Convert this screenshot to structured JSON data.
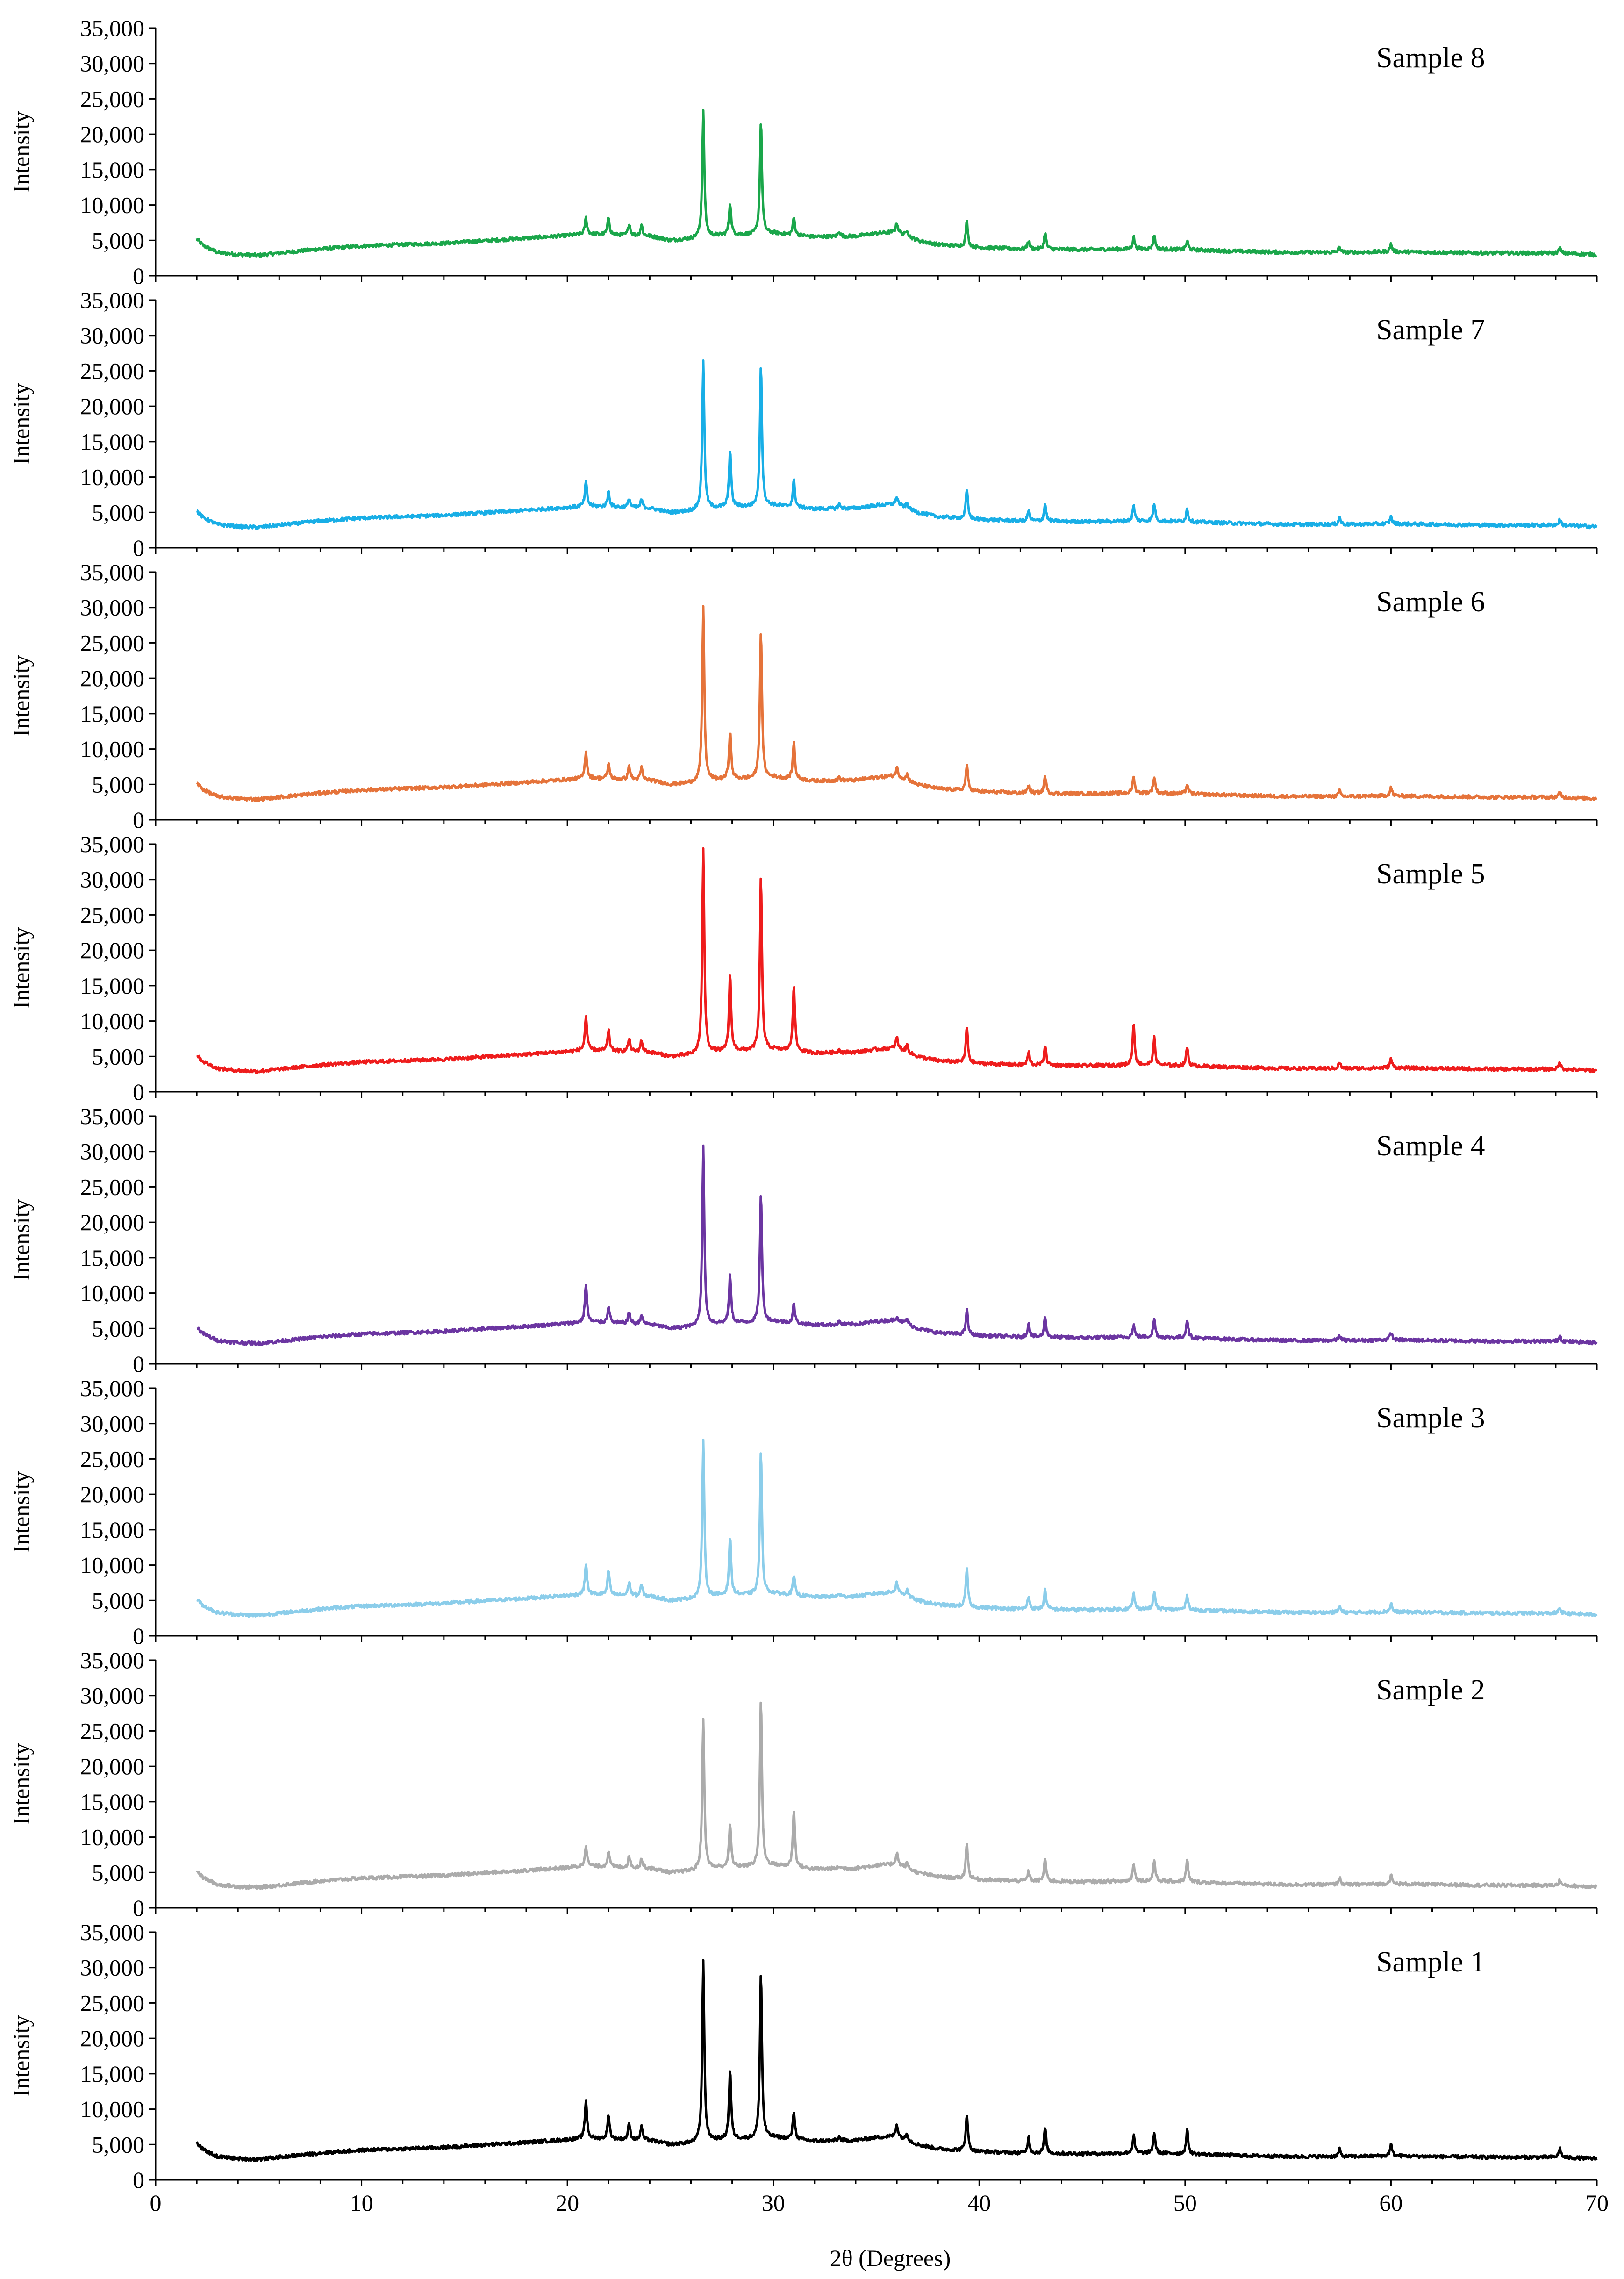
{
  "chart_data": {
    "type": "line",
    "xlabel": "2θ (Degrees)",
    "ylabel": "Intensity",
    "xlim": [
      0,
      70
    ],
    "ylim": [
      0,
      35000
    ],
    "x_ticks": [
      0,
      10,
      20,
      30,
      40,
      50,
      60,
      70
    ],
    "x_tick_labels": [
      "0",
      "10",
      "20",
      "30",
      "40",
      "50",
      "60",
      "70"
    ],
    "y_ticks": [
      0,
      5000,
      10000,
      15000,
      20000,
      25000,
      30000,
      35000
    ],
    "y_tick_labels": [
      "0",
      "5,000",
      "10,000",
      "15,000",
      "20,000",
      "25,000",
      "30,000",
      "35,000"
    ],
    "background": [
      [
        2,
        5200
      ],
      [
        2.3,
        4300
      ],
      [
        3,
        3300
      ],
      [
        4,
        3000
      ],
      [
        5,
        2900
      ],
      [
        6,
        3200
      ],
      [
        8,
        3800
      ],
      [
        10,
        4200
      ],
      [
        14,
        4600
      ],
      [
        18,
        5300
      ],
      [
        20,
        5700
      ],
      [
        21,
        5900
      ],
      [
        22,
        5800
      ],
      [
        24,
        5600
      ],
      [
        25,
        5000
      ],
      [
        26,
        5200
      ],
      [
        27,
        5600
      ],
      [
        28,
        5800
      ],
      [
        29,
        5800
      ],
      [
        30,
        6000
      ],
      [
        32,
        5500
      ],
      [
        34,
        5600
      ],
      [
        35,
        6000
      ],
      [
        36,
        6200
      ],
      [
        37,
        5000
      ],
      [
        38,
        4400
      ],
      [
        40,
        4000
      ],
      [
        42,
        3800
      ],
      [
        45,
        3700
      ],
      [
        48,
        3800
      ],
      [
        50,
        3700
      ],
      [
        52,
        3500
      ],
      [
        55,
        3300
      ],
      [
        58,
        3300
      ],
      [
        60,
        3400
      ],
      [
        62,
        3300
      ],
      [
        65,
        3200
      ],
      [
        68,
        3200
      ],
      [
        70,
        3000
      ]
    ],
    "series": [
      {
        "name": "Sample 8",
        "label": "Sample 8",
        "color": "#1aa64a",
        "peaks": [
          [
            20.9,
            8200
          ],
          [
            22.0,
            8200
          ],
          [
            23.0,
            7400
          ],
          [
            23.6,
            7200
          ],
          [
            26.6,
            23300
          ],
          [
            27.9,
            10300
          ],
          [
            29.4,
            21900
          ],
          [
            31.0,
            8200
          ],
          [
            33.2,
            6300
          ],
          [
            36.0,
            7500
          ],
          [
            36.5,
            6500
          ],
          [
            39.4,
            7700
          ],
          [
            42.4,
            5000
          ],
          [
            43.2,
            6100
          ],
          [
            47.5,
            5500
          ],
          [
            48.5,
            5800
          ],
          [
            50.1,
            4900
          ],
          [
            57.5,
            4100
          ],
          [
            60.0,
            4500
          ],
          [
            68.2,
            3900
          ]
        ]
      },
      {
        "name": "Sample 7",
        "label": "Sample 7",
        "color": "#18aee6",
        "peaks": [
          [
            20.9,
            9300
          ],
          [
            22.0,
            8000
          ],
          [
            23.0,
            7000
          ],
          [
            23.6,
            6800
          ],
          [
            26.6,
            26600
          ],
          [
            27.9,
            13900
          ],
          [
            29.4,
            26000
          ],
          [
            31.0,
            9500
          ],
          [
            33.2,
            6200
          ],
          [
            36.0,
            7200
          ],
          [
            36.5,
            6300
          ],
          [
            39.4,
            8200
          ],
          [
            42.4,
            5300
          ],
          [
            43.2,
            6200
          ],
          [
            47.5,
            6000
          ],
          [
            48.5,
            6300
          ],
          [
            50.1,
            5500
          ],
          [
            57.5,
            4300
          ],
          [
            60.0,
            4400
          ],
          [
            68.2,
            4000
          ]
        ]
      },
      {
        "name": "Sample 6",
        "label": "Sample 6",
        "color": "#e5733a",
        "peaks": [
          [
            20.9,
            9700
          ],
          [
            22.0,
            7900
          ],
          [
            23.0,
            7600
          ],
          [
            23.6,
            7400
          ],
          [
            26.6,
            30200
          ],
          [
            27.9,
            12500
          ],
          [
            29.4,
            26900
          ],
          [
            31.0,
            11000
          ],
          [
            33.2,
            6000
          ],
          [
            36.0,
            7400
          ],
          [
            36.5,
            6400
          ],
          [
            39.4,
            7800
          ],
          [
            42.4,
            5000
          ],
          [
            43.2,
            6200
          ],
          [
            47.5,
            6100
          ],
          [
            48.5,
            6100
          ],
          [
            50.1,
            5000
          ],
          [
            57.5,
            4100
          ],
          [
            60.0,
            4600
          ],
          [
            68.2,
            3900
          ]
        ]
      },
      {
        "name": "Sample 5",
        "label": "Sample 5",
        "color": "#ee1c1c",
        "peaks": [
          [
            20.9,
            10700
          ],
          [
            22.0,
            8600
          ],
          [
            23.0,
            7500
          ],
          [
            23.6,
            7300
          ],
          [
            26.6,
            34200
          ],
          [
            27.9,
            16500
          ],
          [
            29.4,
            30500
          ],
          [
            31.0,
            15200
          ],
          [
            33.2,
            6000
          ],
          [
            36.0,
            7700
          ],
          [
            36.5,
            6700
          ],
          [
            39.4,
            9100
          ],
          [
            42.4,
            5600
          ],
          [
            43.2,
            6600
          ],
          [
            47.5,
            9700
          ],
          [
            48.5,
            7600
          ],
          [
            50.1,
            6300
          ],
          [
            57.5,
            4200
          ],
          [
            60.0,
            4700
          ],
          [
            68.2,
            4200
          ]
        ]
      },
      {
        "name": "Sample 4",
        "label": "Sample 4",
        "color": "#6b35a1",
        "peaks": [
          [
            20.9,
            11300
          ],
          [
            22.0,
            8200
          ],
          [
            23.0,
            7300
          ],
          [
            23.6,
            7000
          ],
          [
            26.6,
            30600
          ],
          [
            27.9,
            12500
          ],
          [
            29.4,
            24300
          ],
          [
            31.0,
            8400
          ],
          [
            33.2,
            6000
          ],
          [
            36.0,
            6700
          ],
          [
            36.5,
            6400
          ],
          [
            39.4,
            7600
          ],
          [
            42.4,
            5800
          ],
          [
            43.2,
            6700
          ],
          [
            47.5,
            5500
          ],
          [
            48.5,
            6400
          ],
          [
            50.1,
            6300
          ],
          [
            57.5,
            4100
          ],
          [
            60.0,
            4500
          ],
          [
            68.2,
            4000
          ]
        ]
      },
      {
        "name": "Sample 3",
        "label": "Sample 3",
        "color": "#8bcdea",
        "peaks": [
          [
            20.9,
            10200
          ],
          [
            22.0,
            9200
          ],
          [
            23.0,
            7700
          ],
          [
            23.6,
            7200
          ],
          [
            26.6,
            27700
          ],
          [
            27.9,
            14000
          ],
          [
            29.4,
            26100
          ],
          [
            31.0,
            8500
          ],
          [
            33.2,
            6000
          ],
          [
            36.0,
            7600
          ],
          [
            36.5,
            6600
          ],
          [
            39.4,
            9500
          ],
          [
            42.4,
            5600
          ],
          [
            43.2,
            6500
          ],
          [
            47.5,
            6000
          ],
          [
            48.5,
            6300
          ],
          [
            50.1,
            5800
          ],
          [
            57.5,
            4200
          ],
          [
            60.0,
            4600
          ],
          [
            68.2,
            4000
          ]
        ]
      },
      {
        "name": "Sample 2",
        "label": "Sample 2",
        "color": "#ababab",
        "peaks": [
          [
            20.9,
            8900
          ],
          [
            22.0,
            8100
          ],
          [
            23.0,
            7300
          ],
          [
            23.6,
            7000
          ],
          [
            26.6,
            26900
          ],
          [
            27.9,
            11800
          ],
          [
            29.4,
            29700
          ],
          [
            31.0,
            13900
          ],
          [
            33.2,
            5900
          ],
          [
            36.0,
            7800
          ],
          [
            36.5,
            6300
          ],
          [
            39.4,
            9200
          ],
          [
            42.4,
            5200
          ],
          [
            43.2,
            7000
          ],
          [
            47.5,
            6400
          ],
          [
            48.5,
            6800
          ],
          [
            50.1,
            6700
          ],
          [
            57.5,
            4300
          ],
          [
            60.0,
            4600
          ],
          [
            68.2,
            3900
          ]
        ]
      },
      {
        "name": "Sample 1",
        "label": "Sample 1",
        "color": "#000000",
        "peaks": [
          [
            20.9,
            11300
          ],
          [
            22.0,
            9200
          ],
          [
            23.0,
            8000
          ],
          [
            23.6,
            7600
          ],
          [
            26.6,
            31000
          ],
          [
            27.9,
            15500
          ],
          [
            29.4,
            29400
          ],
          [
            31.0,
            9700
          ],
          [
            33.2,
            6100
          ],
          [
            36.0,
            7900
          ],
          [
            36.5,
            6600
          ],
          [
            39.4,
            9400
          ],
          [
            42.4,
            6100
          ],
          [
            43.2,
            7400
          ],
          [
            47.5,
            6300
          ],
          [
            48.5,
            6700
          ],
          [
            50.1,
            7000
          ],
          [
            57.5,
            4300
          ],
          [
            60.0,
            5000
          ],
          [
            68.2,
            4500
          ]
        ]
      }
    ]
  }
}
